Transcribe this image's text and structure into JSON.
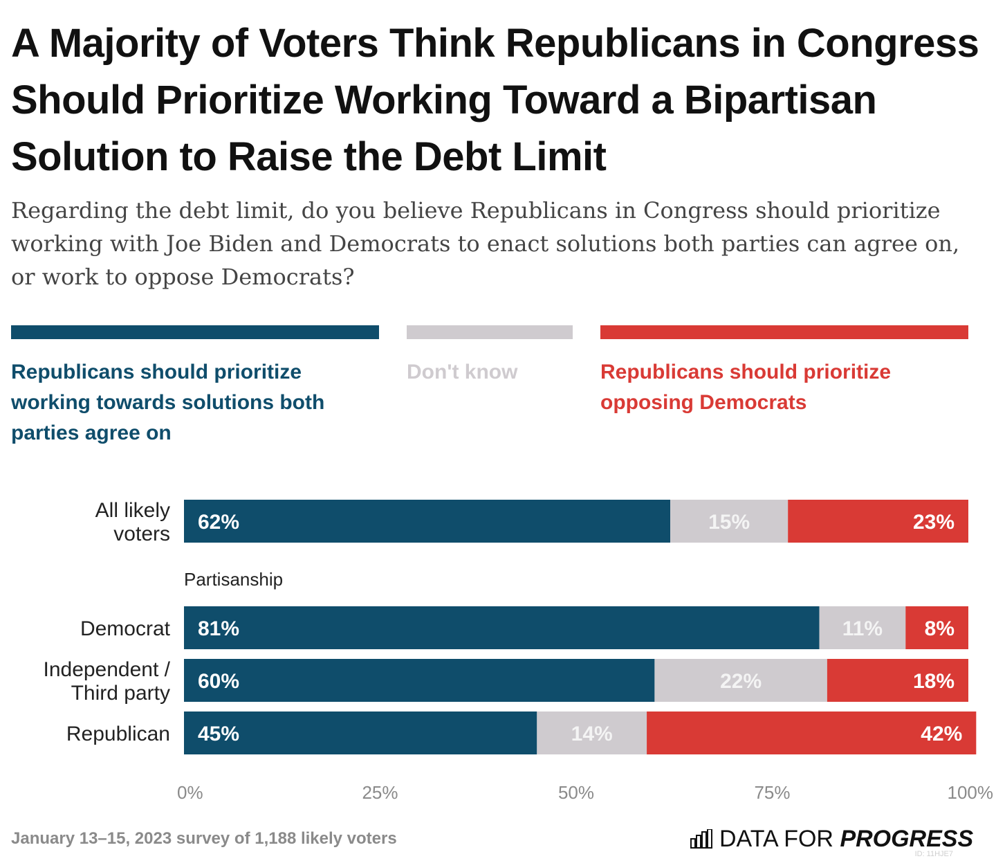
{
  "header": {
    "title": "A Majority of Voters Think Republicans in Congress Should Prioritize Working Toward a Bipartisan Solution to Raise the Debt Limit",
    "subtitle": "Regarding the debt limit, do you believe Republicans in Congress should prioritize working with Joe Biden and Democrats to enact solutions both parties can agree on, or work to oppose Democrats?"
  },
  "legend": [
    {
      "label": "Republicans should prioritize working towards solutions both parties agree on",
      "color": "#0f4d6b"
    },
    {
      "label": "Don't know",
      "color": "#cfcbcf"
    },
    {
      "label": "Republicans should prioritize opposing Democrats",
      "color": "#d93a35"
    }
  ],
  "chart_data": {
    "type": "bar",
    "orientation": "horizontal",
    "stacked": true,
    "categories": [
      "All likely voters",
      "Democrat",
      "Independent / Third party",
      "Republican"
    ],
    "group_label": "Partisanship",
    "series": [
      {
        "name": "Republicans should prioritize working towards solutions both parties agree on",
        "color": "#0f4d6b",
        "values": [
          62,
          81,
          60,
          45
        ],
        "labels": [
          "62%",
          "81%",
          "60%",
          "45%"
        ]
      },
      {
        "name": "Don't know",
        "color": "#cfcbcf",
        "values": [
          15,
          11,
          22,
          14
        ],
        "labels": [
          "15%",
          "11%",
          "22%",
          "14%"
        ]
      },
      {
        "name": "Republicans should prioritize opposing Democrats",
        "color": "#d93a35",
        "values": [
          23,
          8,
          18,
          42
        ],
        "labels": [
          "23%",
          "8%",
          "18%",
          "42%"
        ]
      }
    ],
    "xlim": [
      0,
      100
    ],
    "ticks": [
      "0%",
      "25%",
      "50%",
      "75%",
      "100%"
    ],
    "tick_values": [
      0,
      25,
      50,
      75,
      100
    ]
  },
  "footer": {
    "note": "January 13–15, 2023 survey of 1,188 likely voters",
    "brand_plain": "DATA FOR",
    "brand_bold": "PROGRESS",
    "chart_id": "ID: 11HJE7"
  }
}
